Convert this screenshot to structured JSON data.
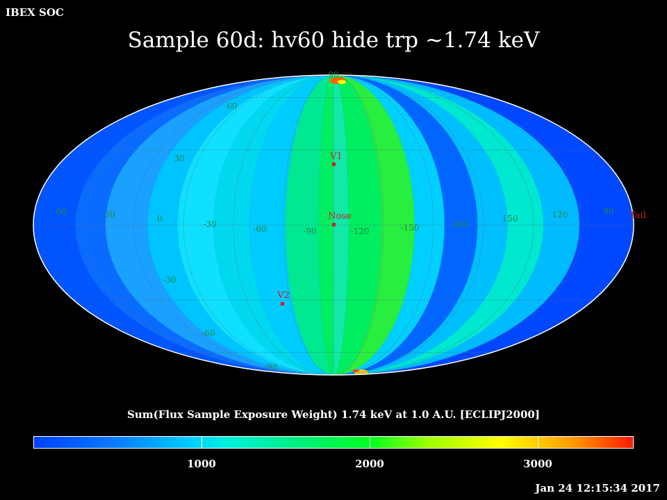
{
  "header": {
    "org": "IBEX SOC",
    "title": "Sample 60d: hv60 hide trp ~1.74 keV"
  },
  "map": {
    "projection": "mollweide (ecliptic J2000)",
    "lat_labels": [
      {
        "text": "90"
      },
      {
        "text": "60"
      },
      {
        "text": "30"
      },
      {
        "text": "-30"
      },
      {
        "text": "-60"
      },
      {
        "text": "-90"
      }
    ],
    "lon_labels": [
      {
        "text": "60"
      },
      {
        "text": "30"
      },
      {
        "text": "0"
      },
      {
        "text": "-30"
      },
      {
        "text": "-60"
      },
      {
        "text": "-90"
      },
      {
        "text": "-120"
      },
      {
        "text": "-150"
      },
      {
        "text": "180"
      },
      {
        "text": "150"
      },
      {
        "text": "120"
      },
      {
        "text": "90"
      }
    ],
    "markers": [
      {
        "text": "V1"
      },
      {
        "text": "Nose"
      },
      {
        "text": "V2"
      },
      {
        "text": "Tail"
      }
    ],
    "colors": {
      "marker": "#cc2222",
      "grid": "#555555",
      "outline": "#ffffff"
    }
  },
  "colorbar": {
    "caption": "Sum(Flux Sample Exposure Weight)  1.74 keV at 1.0 A.U. [ECLIPJ2000]",
    "ticks": [
      {
        "value": 1000,
        "label": "1000"
      },
      {
        "value": 2000,
        "label": "2000"
      },
      {
        "value": 3000,
        "label": "3000"
      }
    ],
    "range": [
      0,
      3570
    ],
    "colors": [
      "#0040ff",
      "#00ccff",
      "#00ff20",
      "#ffff00",
      "#ff1a00"
    ]
  },
  "timestamp": "Jan 24 12:15:34 2017"
}
